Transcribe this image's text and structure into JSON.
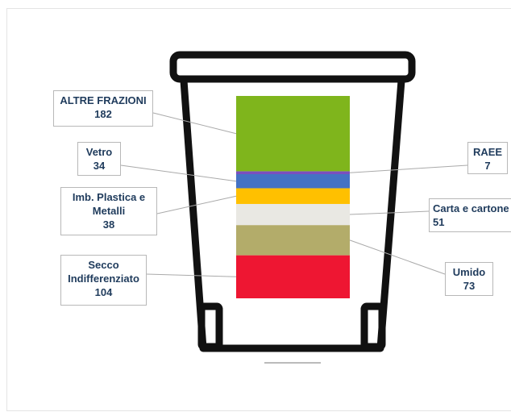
{
  "chart_data": {
    "type": "bar",
    "stacked": true,
    "series": [
      {
        "name": "Secco Indifferenziato",
        "color": "#ee1632",
        "values": [
          104
        ]
      },
      {
        "name": "Umido",
        "color": "#b3ac6a",
        "values": [
          73
        ]
      },
      {
        "name": "Carta e cartone",
        "color": "#e9e8e3",
        "values": [
          51
        ]
      },
      {
        "name": "Imb. Plastica e Metalli",
        "color": "#ffc000",
        "values": [
          38
        ]
      },
      {
        "name": "Vetro",
        "color": "#4472c4",
        "values": [
          34
        ]
      },
      {
        "name": "RAEE",
        "color": "#7b4fbf",
        "values": [
          7
        ]
      },
      {
        "name": "ALTRE FRAZIONI",
        "color": "#7fb51c",
        "values": [
          182
        ]
      }
    ]
  }
}
